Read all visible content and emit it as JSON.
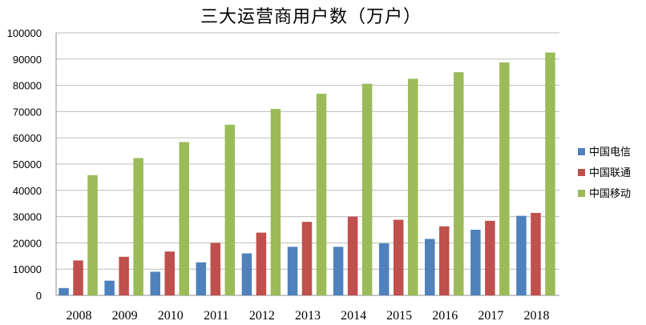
{
  "chart_data": {
    "type": "bar",
    "title": "三大运营商用户数（万户）",
    "categories": [
      "2008",
      "2009",
      "2010",
      "2011",
      "2012",
      "2013",
      "2014",
      "2015",
      "2016",
      "2017",
      "2018"
    ],
    "series": [
      {
        "name": "中国电信",
        "color": "#4f81bd",
        "values": [
          2800,
          5600,
          9000,
          12600,
          16000,
          18500,
          18500,
          19800,
          21500,
          25000,
          30300
        ]
      },
      {
        "name": "中国联通",
        "color": "#c0504d",
        "values": [
          13300,
          14700,
          16700,
          20000,
          23900,
          28000,
          30000,
          28800,
          26300,
          28400,
          31400
        ]
      },
      {
        "name": "中国移动",
        "color": "#9bbb59",
        "values": [
          45800,
          52300,
          58400,
          65000,
          71000,
          76800,
          80600,
          82500,
          85000,
          88700,
          92500
        ]
      }
    ],
    "yticks": [
      "0",
      "10000",
      "20000",
      "30000",
      "40000",
      "50000",
      "60000",
      "70000",
      "80000",
      "90000",
      "100000"
    ],
    "ylim": [
      0,
      100000
    ],
    "grid": true,
    "legend": "right"
  }
}
